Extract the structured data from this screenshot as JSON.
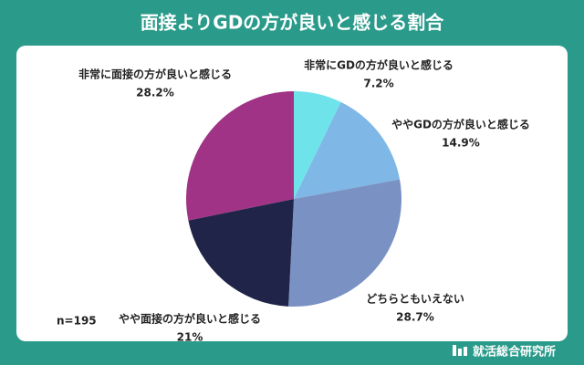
{
  "chart_data": {
    "type": "pie",
    "title": "面接よりGDの方が良いと感じる割合",
    "categories": [
      "非常にGDの方が良いと感じる",
      "ややGDの方が良いと感じる",
      "どちらともいえない",
      "やや面接の方が良いと感じる",
      "非常に面接の方が良いと感じる"
    ],
    "values": [
      7.2,
      14.9,
      28.7,
      21,
      28.2
    ],
    "value_labels": [
      "7.2%",
      "14.9%",
      "28.7%",
      "21%",
      "28.2%"
    ],
    "colors": [
      "#6fe3ea",
      "#7fb7e6",
      "#7a91c3",
      "#1f2448",
      "#a03385"
    ],
    "note": "n=195",
    "source": "就活総合研究所"
  }
}
